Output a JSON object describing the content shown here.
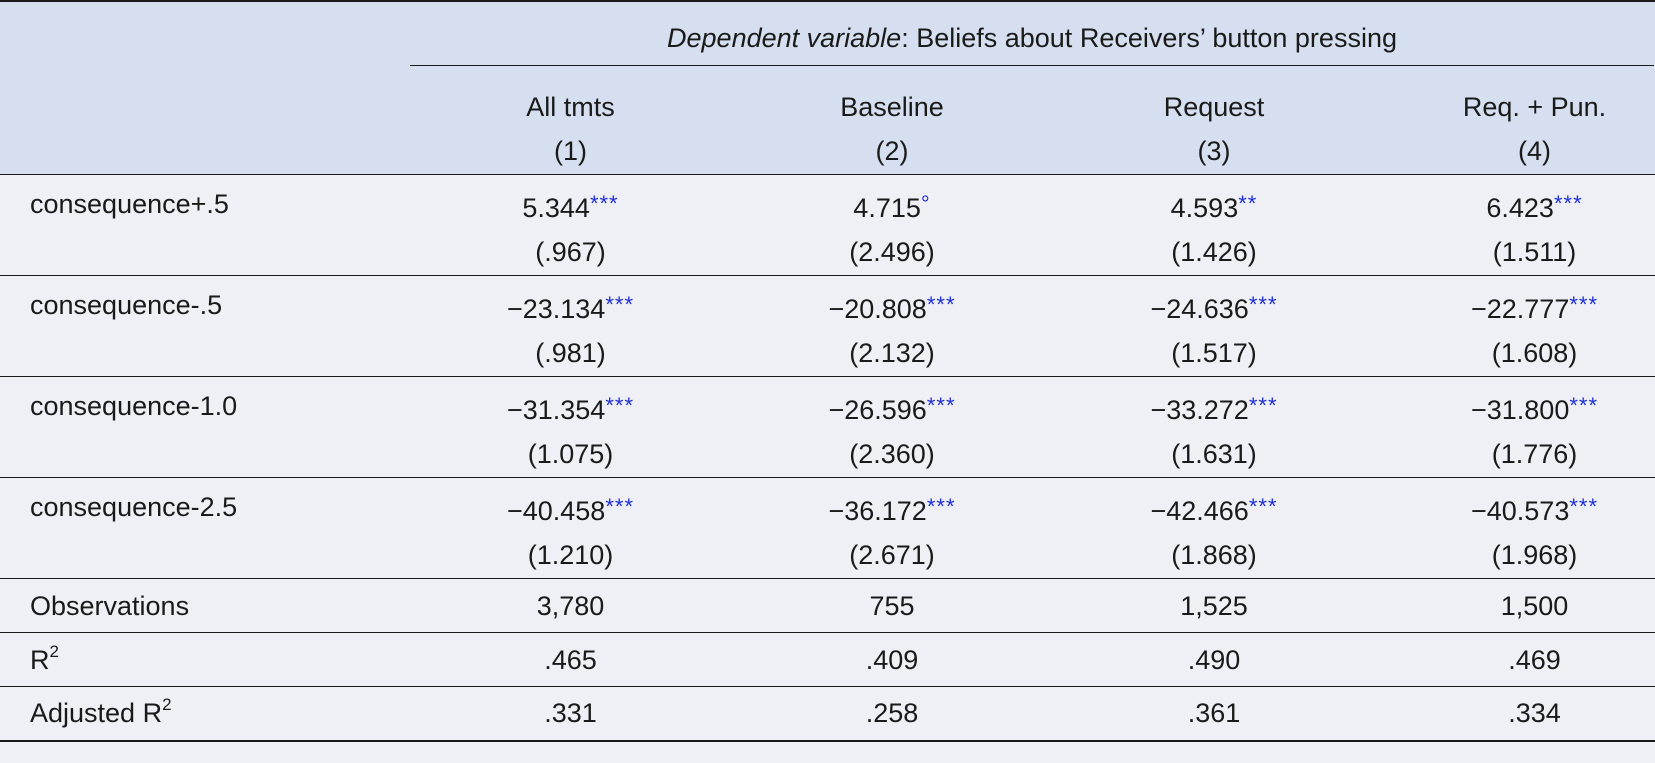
{
  "header": {
    "dep_var_italic": "Dependent variable",
    "dep_var_rest": ": Beliefs about Receivers’ button pressing",
    "columns": [
      {
        "name": "All tmts",
        "num": "(1)"
      },
      {
        "name": "Baseline",
        "num": "(2)"
      },
      {
        "name": "Request",
        "num": "(3)"
      },
      {
        "name": "Req. + Pun.",
        "num": "(4)"
      }
    ]
  },
  "rows": [
    {
      "label": "consequence+.5",
      "cells": [
        {
          "est": "5.344",
          "stars": "***",
          "se": "(.967)"
        },
        {
          "est": "4.715",
          "stars": "°",
          "se": "(2.496)"
        },
        {
          "est": "4.593",
          "stars": "**",
          "se": "(1.426)"
        },
        {
          "est": "6.423",
          "stars": "***",
          "se": "(1.511)"
        }
      ]
    },
    {
      "label": "consequence-.5",
      "cells": [
        {
          "est": "−23.134",
          "stars": "***",
          "se": "(.981)"
        },
        {
          "est": "−20.808",
          "stars": "***",
          "se": "(2.132)"
        },
        {
          "est": "−24.636",
          "stars": "***",
          "se": "(1.517)"
        },
        {
          "est": "−22.777",
          "stars": "***",
          "se": "(1.608)"
        }
      ]
    },
    {
      "label": "consequence-1.0",
      "cells": [
        {
          "est": "−31.354",
          "stars": "***",
          "se": "(1.075)"
        },
        {
          "est": "−26.596",
          "stars": "***",
          "se": "(2.360)"
        },
        {
          "est": "−33.272",
          "stars": "***",
          "se": "(1.631)"
        },
        {
          "est": "−31.800",
          "stars": "***",
          "se": "(1.776)"
        }
      ]
    },
    {
      "label": "consequence-2.5",
      "cells": [
        {
          "est": "−40.458",
          "stars": "***",
          "se": "(1.210)"
        },
        {
          "est": "−36.172",
          "stars": "***",
          "se": "(2.671)"
        },
        {
          "est": "−42.466",
          "stars": "***",
          "se": "(1.868)"
        },
        {
          "est": "−40.573",
          "stars": "***",
          "se": "(1.968)"
        }
      ]
    }
  ],
  "stats": [
    {
      "label": "Observations",
      "label_sup": "",
      "values": [
        "3,780",
        "755",
        "1,525",
        "1,500"
      ]
    },
    {
      "label": "R",
      "label_sup": "2",
      "values": [
        ".465",
        ".409",
        ".490",
        ".469"
      ]
    },
    {
      "label": "Adjusted R",
      "label_sup": "2",
      "values": [
        ".331",
        ".258",
        ".361",
        ".334"
      ]
    }
  ],
  "colors": {
    "header_bg": "#d5dfef",
    "body_bg": "#eef0f6",
    "stars": "#1f2fd6"
  }
}
